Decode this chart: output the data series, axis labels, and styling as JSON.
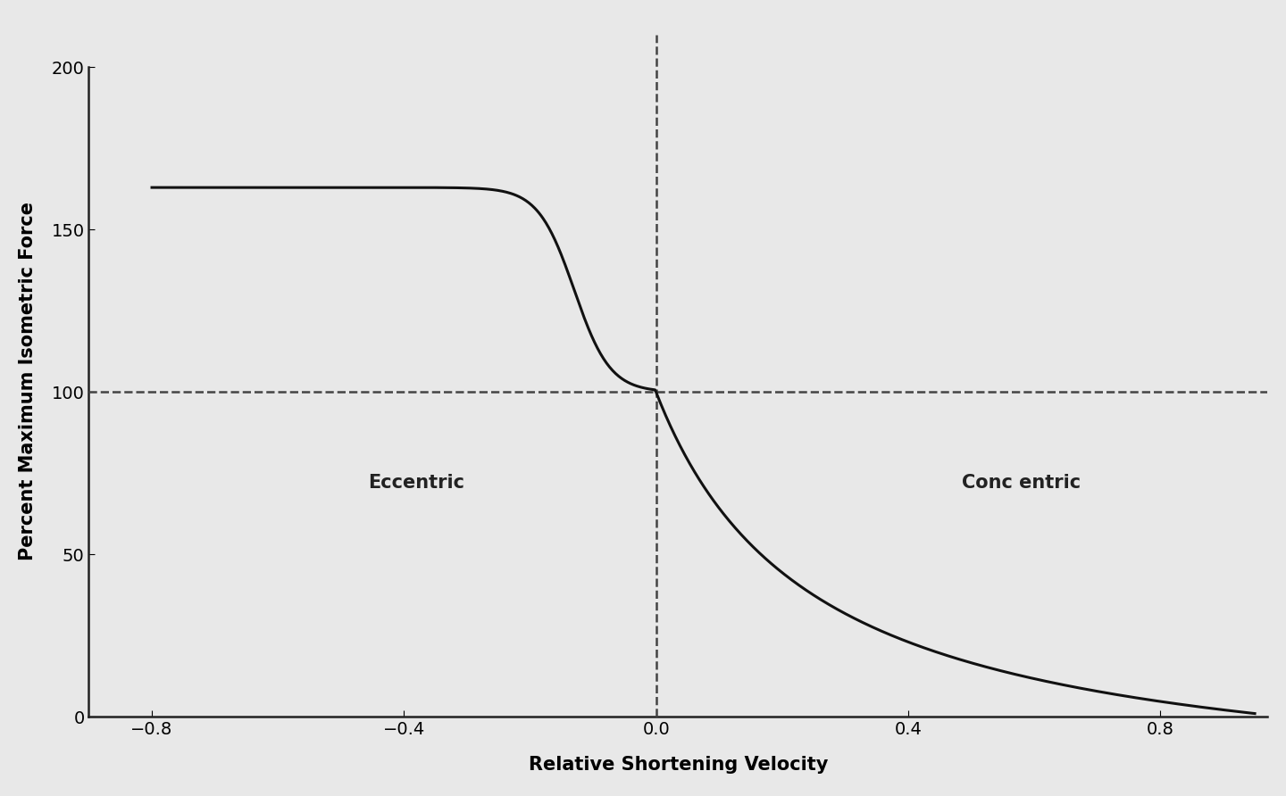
{
  "title": "",
  "xlabel": "Relative Shortening Velocity",
  "ylabel": "Percent Maximum Isometric Force",
  "xlim": [
    -0.9,
    0.97
  ],
  "ylim": [
    -8,
    215
  ],
  "xticks": [
    -0.8,
    -0.4,
    0.0,
    0.4,
    0.8
  ],
  "yticks": [
    0,
    50,
    100,
    150,
    200
  ],
  "eccentric_label": "Eccentric",
  "concentric_label": "Conc entric",
  "dashed_line_color": "#444444",
  "curve_color": "#111111",
  "background_color": "#e8e8e8",
  "label_fontsize": 15,
  "tick_fontsize": 14,
  "curve_linewidth": 2.2,
  "dashed_linewidth": 1.8
}
